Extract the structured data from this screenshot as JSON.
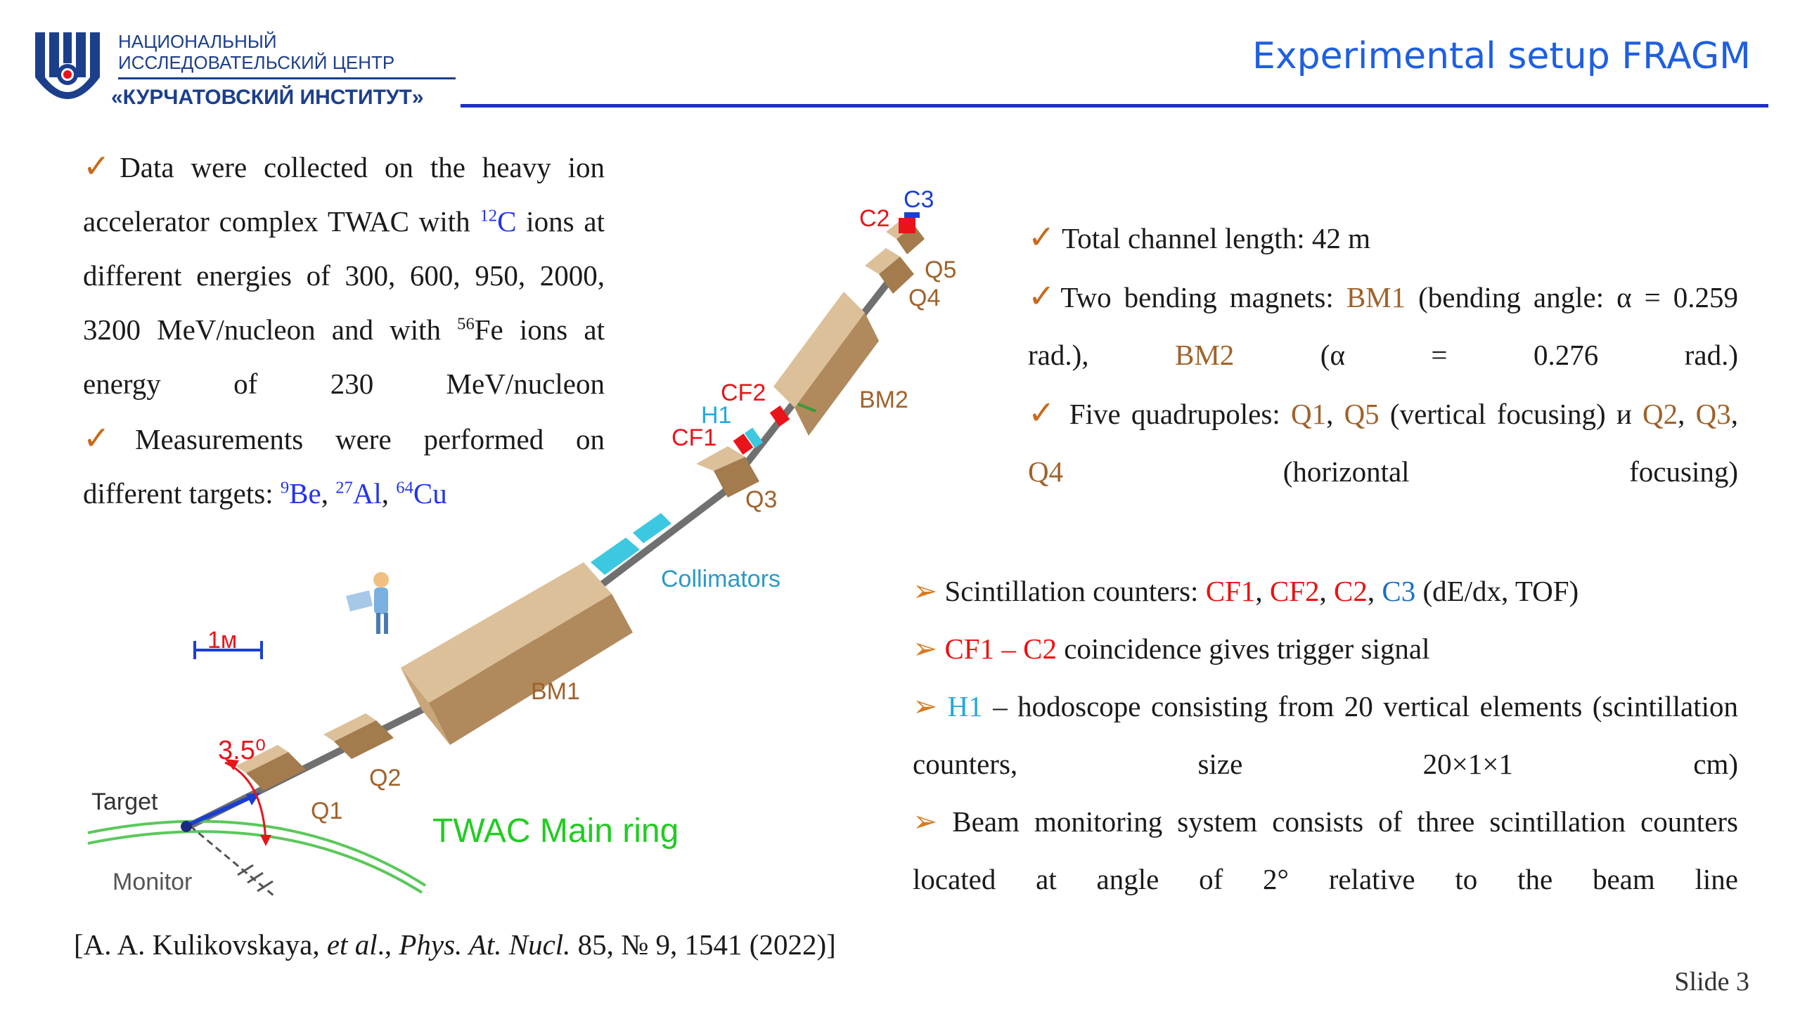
{
  "header": {
    "logo_line1": "НАЦИОНАЛЬНЫЙ",
    "logo_line2": "ИССЛЕДОВАТЕЛЬСКИЙ ЦЕНТР",
    "logo_line3": "«КУРЧАТОВСКИЙ ИНСТИТУТ»",
    "title": "Experimental setup FRAGM"
  },
  "left_text": {
    "p1_a": "Data were collected on the heavy ion accelerator complex TWAC with ",
    "p1_c12_sup": "12",
    "p1_c12": "C",
    "p1_b": " ions at different energies of 300, 600, 950, 2000, 3200 MeV/nucleon and with ",
    "p1_fe_sup": "56",
    "p1_c": "Fe ions at energy of 230 MeV/nucleon",
    "p2_a": "Measurements were performed on different targets: ",
    "t1_sup": "9",
    "t1": "Be",
    "t2_sup": "27",
    "t2": "Al",
    "t3_sup": "64",
    "t3": "Cu",
    "sep": ", "
  },
  "right_top": {
    "b1": "Total channel length: 42 m",
    "b2_a": "Two bending magnets: ",
    "b2_bm1": "BM1",
    "b2_b": " (bending angle: α = 0.259 rad.), ",
    "b2_bm2": "BM2",
    "b2_c": " (α = 0.276 rad.)",
    "b3_a": "Five quadrupoles: ",
    "b3_q1": "Q1",
    "b3_sep": ",  ",
    "b3_q5": "Q5",
    "b3_b": " (vertical focusing) и ",
    "b3_q2": "Q2",
    "b3_q3": "Q3",
    "b3_q4": "Q4",
    "b3_comma": ", ",
    "b3_c": " (horizontal focusing)"
  },
  "right_bottom": {
    "b1_a": "Scintillation counters: ",
    "cf1": "CF1",
    "cf2": "CF2",
    "c2": "C2",
    "c3": "C3",
    "comma": ", ",
    "b1_b": " (dE/dx, TOF)",
    "b2_red": "CF1 – C2",
    "b2_b": " coincidence gives trigger signal",
    "b3_h1": "H1",
    "b3_b": " – hodoscope consisting from 20 vertical elements (scintillation counters, size 20×1×1 cm)",
    "b4": "Beam monitoring system consists of three scintillation counters located at angle of 2° relative to the beam line"
  },
  "diagram": {
    "labels": {
      "c3": "C3",
      "c2": "C2",
      "q5": "Q5",
      "q4": "Q4",
      "bm2": "BM2",
      "cf2": "CF2",
      "h1": "H1",
      "cf1": "CF1",
      "q3": "Q3",
      "collimators": "Collimators",
      "scale": "1м",
      "bm1": "BM1",
      "angle": "3.5⁰",
      "q2": "Q2",
      "q1": "Q1",
      "target": "Target",
      "monitor": "Monitor",
      "ring": "TWAC Main ring"
    },
    "colors": {
      "magnet": "#c9a57a",
      "red_counter": "#e8141a",
      "cyan_counter": "#3cc8e0",
      "beam_pipe": "#707070",
      "ring": "#5ac85a"
    }
  },
  "reference": {
    "a": "[A. A. Kulikovskaya, ",
    "et_al": "et al",
    "b": "., ",
    "journal": "Phys. At. Nucl.",
    "c": " 85, № 9, 1541 (2022)]"
  },
  "footer": {
    "slide": "Slide 3"
  }
}
